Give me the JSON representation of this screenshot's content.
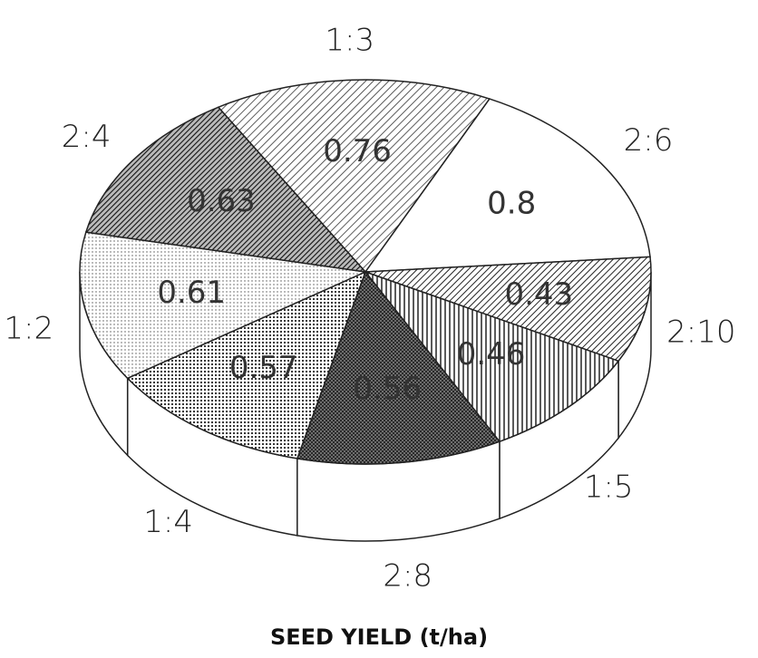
{
  "chart_data": {
    "type": "pie",
    "title": "SEED YIELD (t/ha)",
    "categories": [
      "1:3",
      "2:6",
      "2:10",
      "1:5",
      "2:8",
      "1:4",
      "1:2",
      "2:4"
    ],
    "values": [
      0.76,
      0.8,
      0.43,
      0.46,
      0.56,
      0.57,
      0.61,
      0.63
    ]
  }
}
